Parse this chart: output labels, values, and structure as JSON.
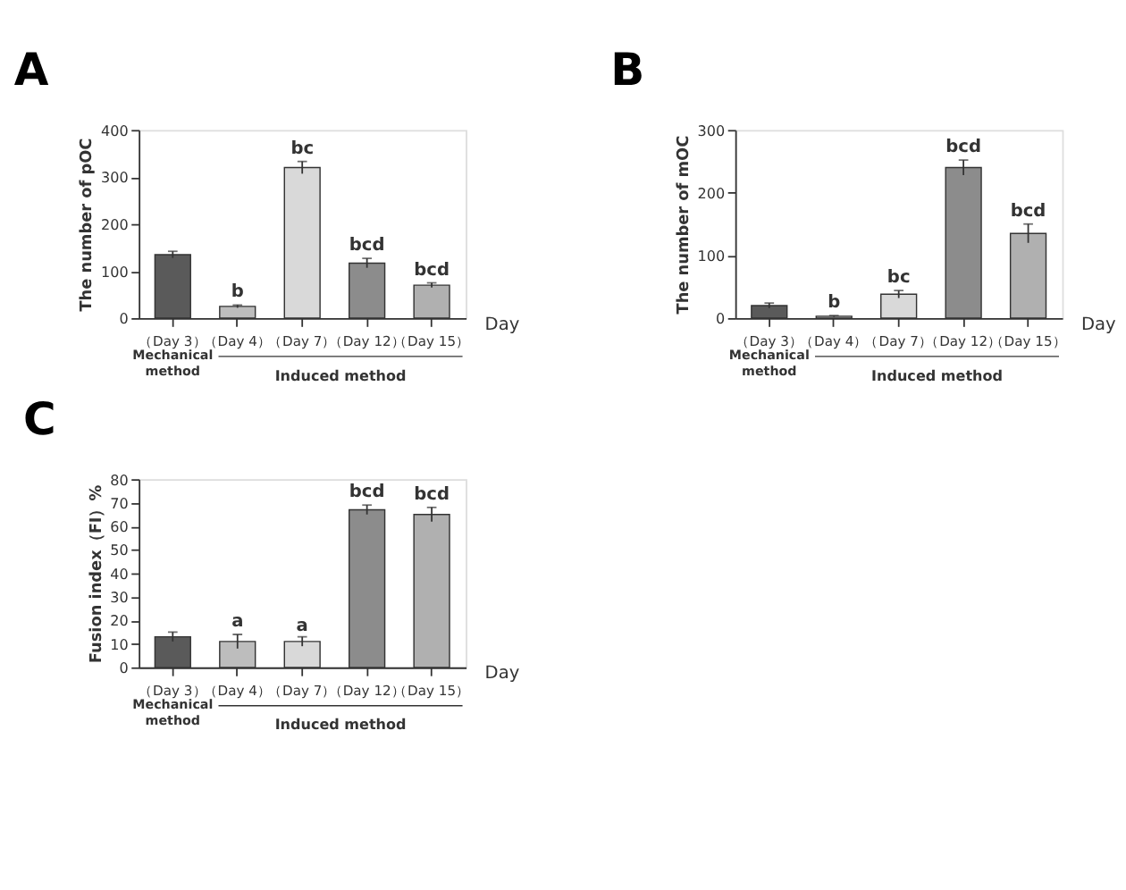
{
  "chart_data": [
    {
      "type": "bar",
      "title": "A",
      "xlabel": "Day",
      "ylabel": "The number of pOC",
      "categories": [
        "（Day 3）",
        "（Day 4）",
        "（Day 7）",
        "（Day 12）",
        "（Day 15）"
      ],
      "values": [
        135,
        25,
        320,
        117,
        70
      ],
      "errors": [
        7,
        3,
        13,
        10,
        5
      ],
      "colors": [
        "#5a5a5a",
        "#bdbdbd",
        "#d9d9d9",
        "#8c8c8c",
        "#b0b0b0"
      ],
      "ylim": [
        0,
        400
      ],
      "yticks": [
        0,
        100,
        200,
        300,
        400
      ],
      "grid": false,
      "annotations": [
        {
          "text": "b",
          "x": "（Day 4）",
          "y": 28
        },
        {
          "text": "bc",
          "x": "（Day 7）",
          "y": 333
        },
        {
          "text": "bcd",
          "x": "（Day 12）",
          "y": 127
        },
        {
          "text": "bcd",
          "x": "（Day 15）",
          "y": 75
        },
        "Mechanical method",
        "Induced method"
      ]
    },
    {
      "type": "bar",
      "title": "B",
      "xlabel": "Day",
      "ylabel": "The number of mOC",
      "categories": [
        "（Day 3）",
        "（Day 4）",
        "（Day 7）",
        "（Day 12）",
        "（Day 15）"
      ],
      "values": [
        20,
        3,
        38,
        240,
        135
      ],
      "errors": [
        4,
        1,
        6,
        12,
        15
      ],
      "colors": [
        "#5a5a5a",
        "#bdbdbd",
        "#d9d9d9",
        "#8c8c8c",
        "#b0b0b0"
      ],
      "ylim": [
        0,
        300
      ],
      "yticks": [
        0,
        100,
        200,
        300
      ],
      "grid": false,
      "annotations": [
        {
          "text": "b",
          "x": "（Day 4）",
          "y": 4
        },
        {
          "text": "bc",
          "x": "（Day 7）",
          "y": 44
        },
        {
          "text": "bcd",
          "x": "（Day 12）",
          "y": 252
        },
        {
          "text": "bcd",
          "x": "（Day 15）",
          "y": 150
        },
        "Mechanical method",
        "Induced method"
      ]
    },
    {
      "type": "bar",
      "title": "C",
      "xlabel": "Day",
      "ylabel": "Fusion index（FI）%",
      "categories": [
        "（Day 3）",
        "（Day 4）",
        "（Day 7）",
        "（Day 12）",
        "（Day 15）"
      ],
      "values": [
        13,
        11,
        11,
        67,
        65
      ],
      "errors": [
        2,
        3,
        2,
        2,
        3
      ],
      "colors": [
        "#5a5a5a",
        "#bdbdbd",
        "#d9d9d9",
        "#8c8c8c",
        "#b0b0b0"
      ],
      "ylim": [
        0,
        80
      ],
      "yticks": [
        0,
        10,
        20,
        30,
        40,
        50,
        60,
        70,
        80
      ],
      "grid": false,
      "annotations": [
        {
          "text": "a",
          "x": "（Day 4）",
          "y": 14
        },
        {
          "text": "a",
          "x": "（Day 7）",
          "y": 12
        },
        {
          "text": "bcd",
          "x": "（Day 12）",
          "y": 69
        },
        {
          "text": "bcd",
          "x": "（Day 15）",
          "y": 68
        },
        "Mechanical method",
        "Induced method"
      ]
    }
  ]
}
